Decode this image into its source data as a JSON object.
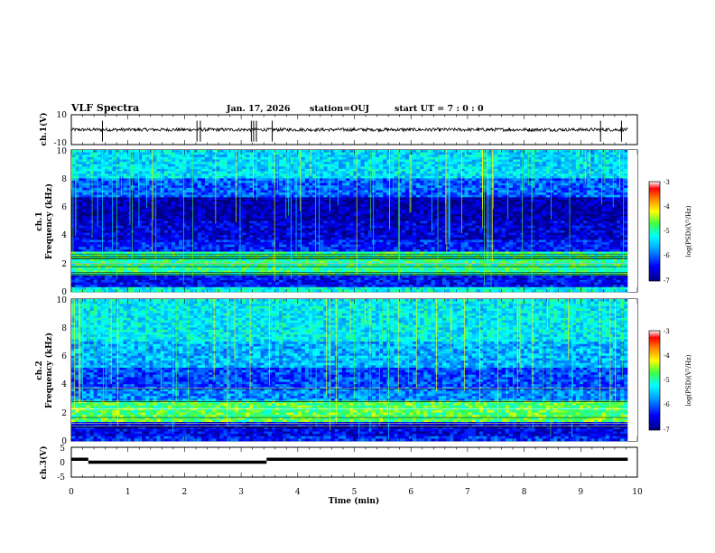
{
  "header": {
    "title": "VLF Spectra",
    "date": "Jan. 17, 2026",
    "station": "station=OUJ",
    "start_time": "start UT =  7 : 0  : 0"
  },
  "colors": {
    "spectrogram_bg": "#00007f",
    "series_line": "#000000"
  },
  "chart_data": [
    {
      "type": "line",
      "name": "ch1-waveform",
      "ylabel": "ch.1(V)",
      "yticks": [
        "10",
        "-10"
      ],
      "ylim": [
        -10,
        10
      ],
      "xlim": [
        0,
        10
      ],
      "baseline": 0,
      "spikes_x": [
        0.55,
        2.22,
        2.28,
        3.18,
        3.22,
        3.27,
        3.55,
        9.35,
        9.72
      ]
    },
    {
      "type": "heatmap",
      "name": "ch1-spectrogram",
      "ylabel_line1": "ch.1",
      "ylabel_line2": "Frequency (kHz)",
      "yticks": [
        "0",
        "2",
        "4",
        "6",
        "8",
        "10"
      ],
      "ylim": [
        0,
        10
      ],
      "xlim": [
        0,
        9.83
      ],
      "colorbar": {
        "label": "log(PSD)(V²/Hz)",
        "ticks": [
          "-3",
          "-4",
          "-5",
          "-6",
          "-7"
        ],
        "range": [
          -7,
          -3
        ]
      },
      "bands_khz": [
        {
          "from": 0.0,
          "to": 0.3,
          "level": -5.2
        },
        {
          "from": 0.3,
          "to": 1.2,
          "level": -6.4
        },
        {
          "from": 1.2,
          "to": 2.9,
          "level": -4.9
        },
        {
          "from": 2.9,
          "to": 3.6,
          "level": -6.3
        },
        {
          "from": 3.6,
          "to": 5.0,
          "level": -6.6
        },
        {
          "from": 5.0,
          "to": 6.6,
          "level": -6.8
        },
        {
          "from": 6.6,
          "to": 8.0,
          "level": -6.0
        },
        {
          "from": 8.0,
          "to": 10.0,
          "level": -5.4
        }
      ]
    },
    {
      "type": "heatmap",
      "name": "ch2-spectrogram",
      "ylabel_line1": "ch.2",
      "ylabel_line2": "Frequency (kHz)",
      "yticks": [
        "0",
        "2",
        "4",
        "6",
        "8",
        "10"
      ],
      "ylim": [
        0,
        10
      ],
      "xlim": [
        0,
        9.83
      ],
      "colorbar": {
        "label": "log(PSD)(V²/Hz)",
        "ticks": [
          "-3",
          "-4",
          "-5",
          "-6",
          "-7"
        ],
        "range": [
          -7,
          -3
        ]
      },
      "bands_khz": [
        {
          "from": 0.0,
          "to": 0.4,
          "level": -6.2
        },
        {
          "from": 0.4,
          "to": 1.3,
          "level": -6.5
        },
        {
          "from": 1.3,
          "to": 2.8,
          "level": -4.7
        },
        {
          "from": 2.8,
          "to": 3.6,
          "level": -5.8
        },
        {
          "from": 3.6,
          "to": 5.2,
          "level": -6.1
        },
        {
          "from": 5.2,
          "to": 7.0,
          "level": -5.6
        },
        {
          "from": 7.0,
          "to": 10.0,
          "level": -5.3
        }
      ]
    },
    {
      "type": "line",
      "name": "ch3-signal",
      "ylabel": "ch.3(V)",
      "yticks": [
        "5",
        "0",
        "-5"
      ],
      "ylim": [
        -5,
        5
      ],
      "xlim": [
        0,
        10
      ],
      "xlabel": "Time  (min)",
      "xticks": [
        "0",
        "1",
        "2",
        "3",
        "4",
        "5",
        "6",
        "7",
        "8",
        "9",
        "10"
      ],
      "segments": [
        {
          "x0": 0.0,
          "x1": 0.3,
          "y": 1
        },
        {
          "x0": 0.3,
          "x1": 3.45,
          "y": 0
        },
        {
          "x0": 3.45,
          "x1": 9.83,
          "y": 1
        }
      ]
    }
  ]
}
